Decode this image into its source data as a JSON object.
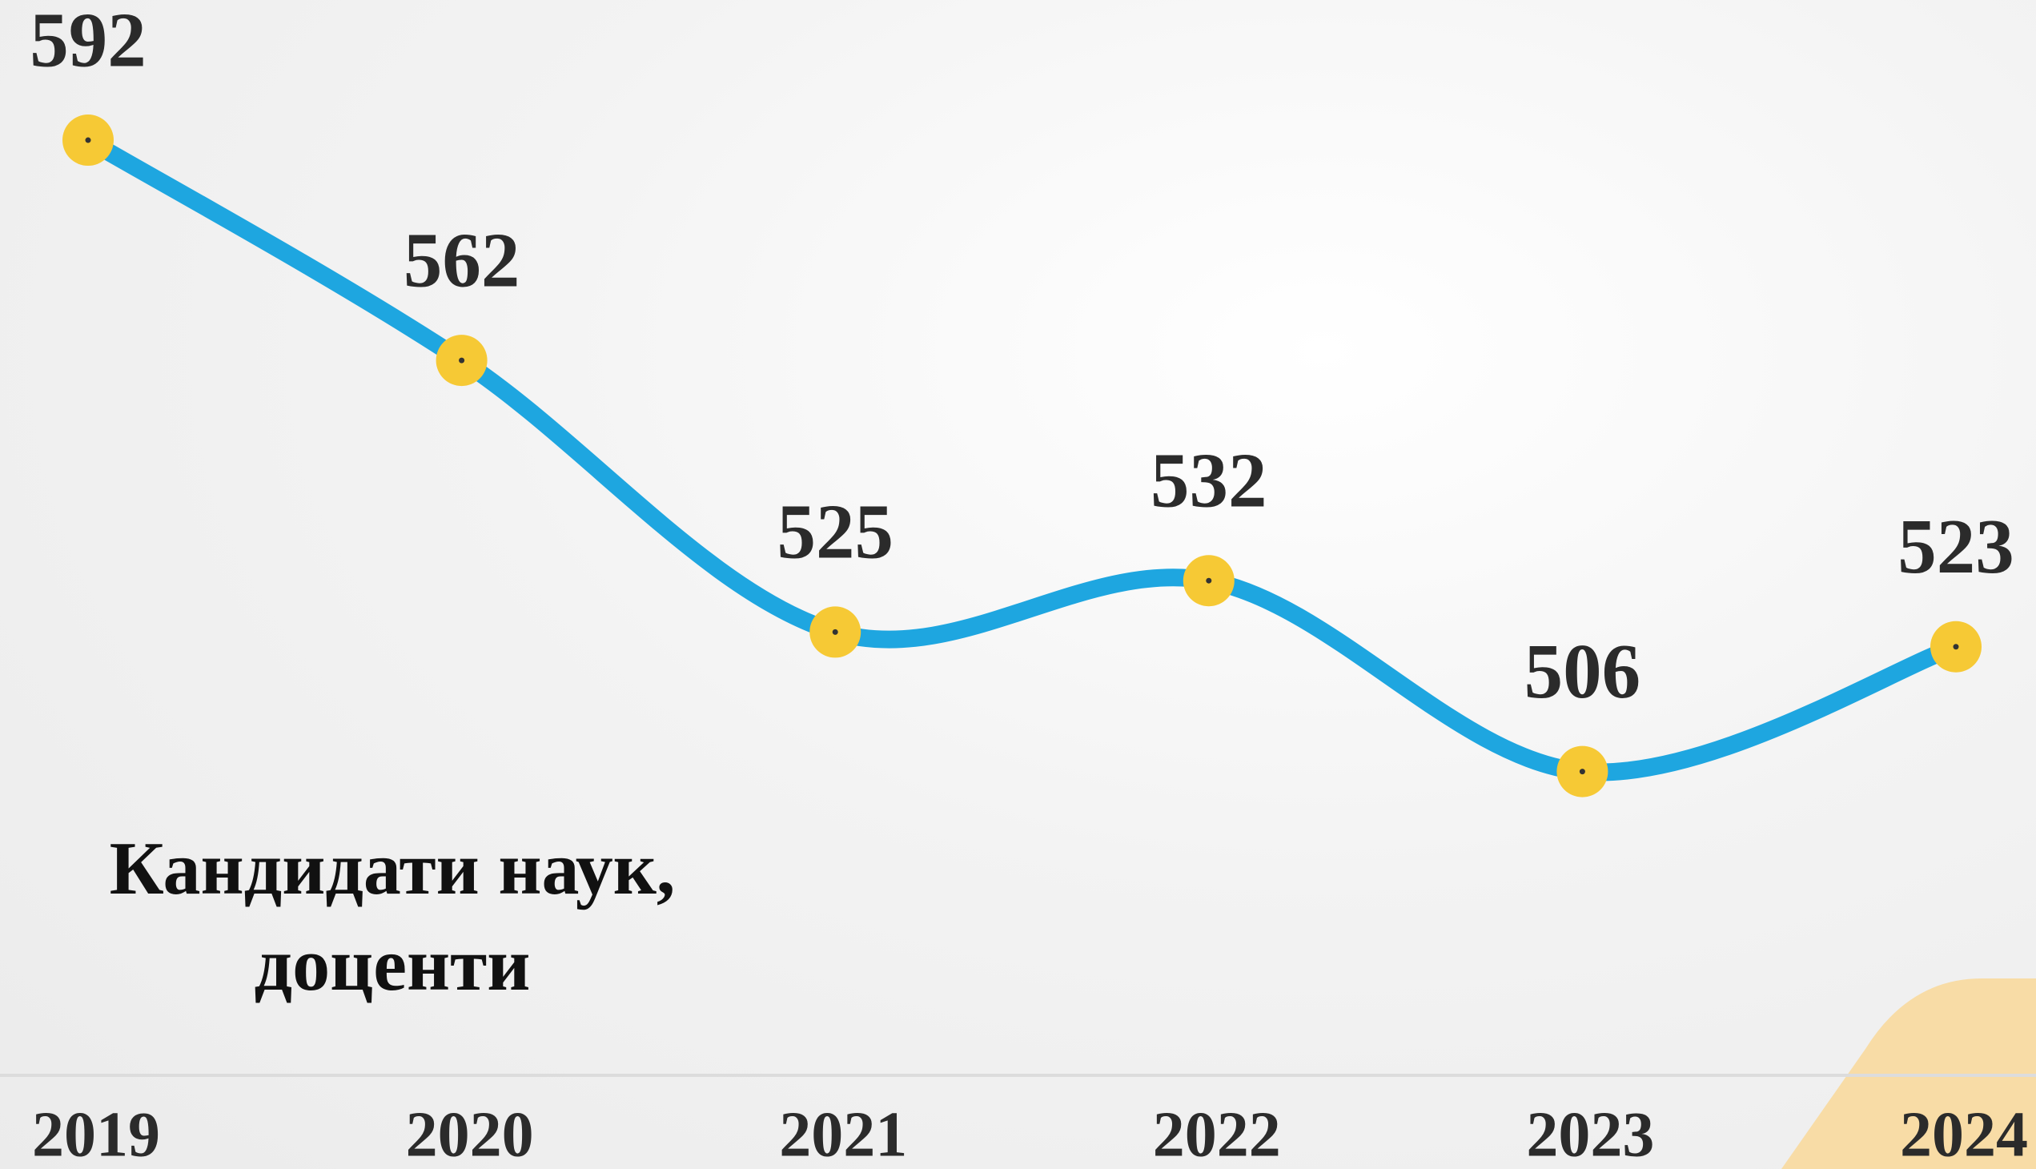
{
  "chart_data": {
    "type": "line",
    "title": "Кандидати наук, доценти",
    "categories": [
      "2019",
      "2020",
      "2021",
      "2022",
      "2023",
      "2024"
    ],
    "values": [
      592,
      562,
      525,
      532,
      506,
      523
    ],
    "color": "#1ea6e0",
    "marker_color": "#f6c935",
    "ylim": [
      480,
      610
    ]
  }
}
